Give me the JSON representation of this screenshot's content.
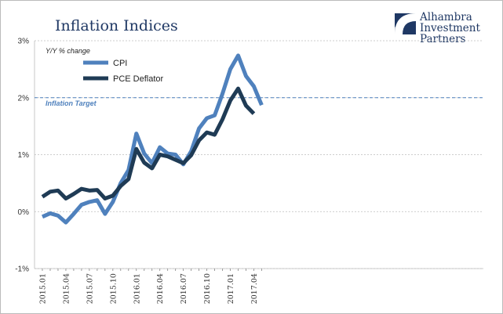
{
  "chart_data": {
    "type": "line",
    "title": "Inflation Indices",
    "ylabel": "Y/Y % change",
    "ylim": [
      -1,
      3
    ],
    "yticks": [
      "3%",
      "2%",
      "1%",
      "0%",
      "-1%"
    ],
    "yticks_values": [
      3,
      2,
      1,
      0,
      -1
    ],
    "x": [
      "2015.01",
      "2015.02",
      "2015.03",
      "2015.04",
      "2015.05",
      "2015.06",
      "2015.07",
      "2015.08",
      "2015.09",
      "2015.10",
      "2015.11",
      "2015.12",
      "2016.01",
      "2016.02",
      "2016.03",
      "2016.04",
      "2016.05",
      "2016.06",
      "2016.07",
      "2016.08",
      "2016.09",
      "2016.10",
      "2016.11",
      "2016.12",
      "2017.01",
      "2017.02",
      "2017.03",
      "2017.04",
      "2017.05"
    ],
    "xticks": [
      "2015.01",
      "2015.04",
      "2015.07",
      "2015.10",
      "2016.01",
      "2016.04",
      "2016.07",
      "2016.10",
      "2017.01",
      "2017.04"
    ],
    "grid": "horizontal dashed",
    "legend_position": "top-left",
    "reference_line": {
      "label": "Inflation Target",
      "value": 2
    },
    "series": [
      {
        "name": "CPI",
        "color": "#4f81bd",
        "values": [
          -0.09,
          -0.03,
          -0.07,
          -0.19,
          -0.04,
          0.12,
          0.17,
          0.2,
          -0.04,
          0.17,
          0.5,
          0.73,
          1.37,
          1.02,
          0.85,
          1.13,
          1.02,
          1.0,
          0.83,
          1.06,
          1.46,
          1.64,
          1.69,
          2.07,
          2.5,
          2.74,
          2.38,
          2.2,
          1.87
        ]
      },
      {
        "name": "PCE Deflator",
        "color": "#1f3b55",
        "values": [
          0.26,
          0.35,
          0.37,
          0.23,
          0.31,
          0.4,
          0.37,
          0.38,
          0.23,
          0.28,
          0.45,
          0.57,
          1.1,
          0.86,
          0.76,
          1.0,
          0.97,
          0.91,
          0.85,
          0.99,
          1.25,
          1.39,
          1.35,
          1.62,
          1.95,
          2.16,
          1.86,
          1.72,
          null
        ]
      }
    ]
  },
  "logo": {
    "name": "Alhambra Investment Partners",
    "line1": "Alhambra",
    "line2": "Investment",
    "line3": "Partners"
  }
}
